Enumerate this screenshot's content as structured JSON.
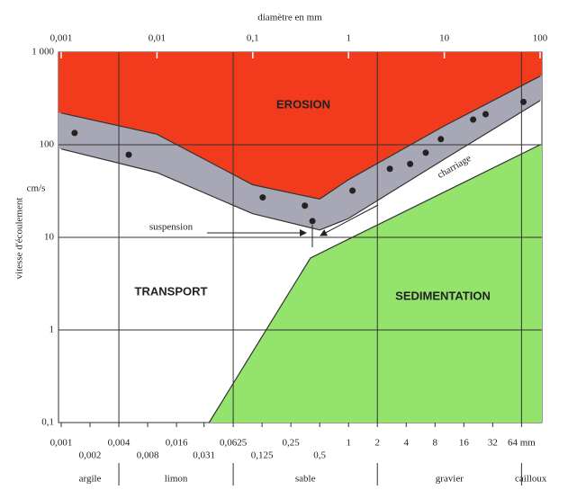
{
  "chart_data": {
    "type": "hjulstrom",
    "x_label": "diamètre en mm",
    "y_label": "vitesse d'écoulement",
    "y_unit": "cm/s",
    "log_x": true,
    "log_y": true,
    "xlim": [
      0.001,
      100
    ],
    "ylim": [
      0.1,
      1000
    ],
    "grid": true,
    "xticks": [
      {
        "value": 0.001,
        "label": "0,001"
      },
      {
        "value": 0.01,
        "label": "0,01"
      },
      {
        "value": 0.1,
        "label": "0,1"
      },
      1,
      10,
      100
    ],
    "xticks_bottom": [
      {
        "value": 0.001,
        "label": "0,001"
      },
      {
        "value": 0.002,
        "label": "0,002"
      },
      {
        "value": 0.004,
        "label": "0,004"
      },
      {
        "value": 0.008,
        "label": "0,008"
      },
      {
        "value": 0.016,
        "label": "0,016"
      },
      {
        "value": 0.031,
        "label": "0,031"
      },
      {
        "value": 0.0625,
        "label": "0,0625"
      },
      {
        "value": 0.125,
        "label": "0,125"
      },
      {
        "value": 0.25,
        "label": "0,25"
      },
      {
        "value": 0.5,
        "label": "0,5"
      },
      1,
      2,
      4,
      8,
      16,
      32,
      {
        "value": 64,
        "label": "64 mm"
      }
    ],
    "yticks": [
      {
        "value": 0.1,
        "label": "0,1"
      },
      1,
      10,
      100,
      {
        "value": 1000,
        "label": "1 000"
      }
    ],
    "erosion": {
      "label": "EROSION",
      "color": "#f23b1c",
      "x": [
        0.001,
        0.01,
        0.1,
        0.3,
        0.5,
        1,
        10,
        100
      ],
      "values": [
        220,
        130,
        37,
        29,
        26,
        42,
        160,
        550
      ]
    },
    "band": {
      "color": "#a7a7b5",
      "x": [
        0.001,
        0.01,
        0.1,
        0.5,
        1,
        10,
        100
      ],
      "values": [
        90,
        50,
        18,
        12,
        16,
        70,
        300
      ]
    },
    "sedimentation": {
      "label": "SEDIMENTATION",
      "color": "#93e36d",
      "x": [
        0.035,
        0.4,
        100
      ],
      "values": [
        0.1,
        6,
        100
      ]
    },
    "points": {
      "color": "#222222",
      "x": [
        0.00138,
        0.00507,
        0.127,
        0.35,
        0.42,
        1.1,
        2.7,
        4.4,
        6.4,
        9.2,
        20,
        27,
        67
      ],
      "values": [
        134,
        78,
        27,
        22,
        15,
        32,
        55,
        62,
        82,
        115,
        187,
        214,
        290
      ]
    },
    "transport_label": "TRANSPORT",
    "suspension_label": "suspension",
    "charriage_label": "charriage",
    "classes": [
      "argile",
      "limon",
      "sable",
      "gravier",
      "cailloux"
    ],
    "class_bounds": [
      0.004,
      0.0625,
      2,
      64
    ]
  }
}
